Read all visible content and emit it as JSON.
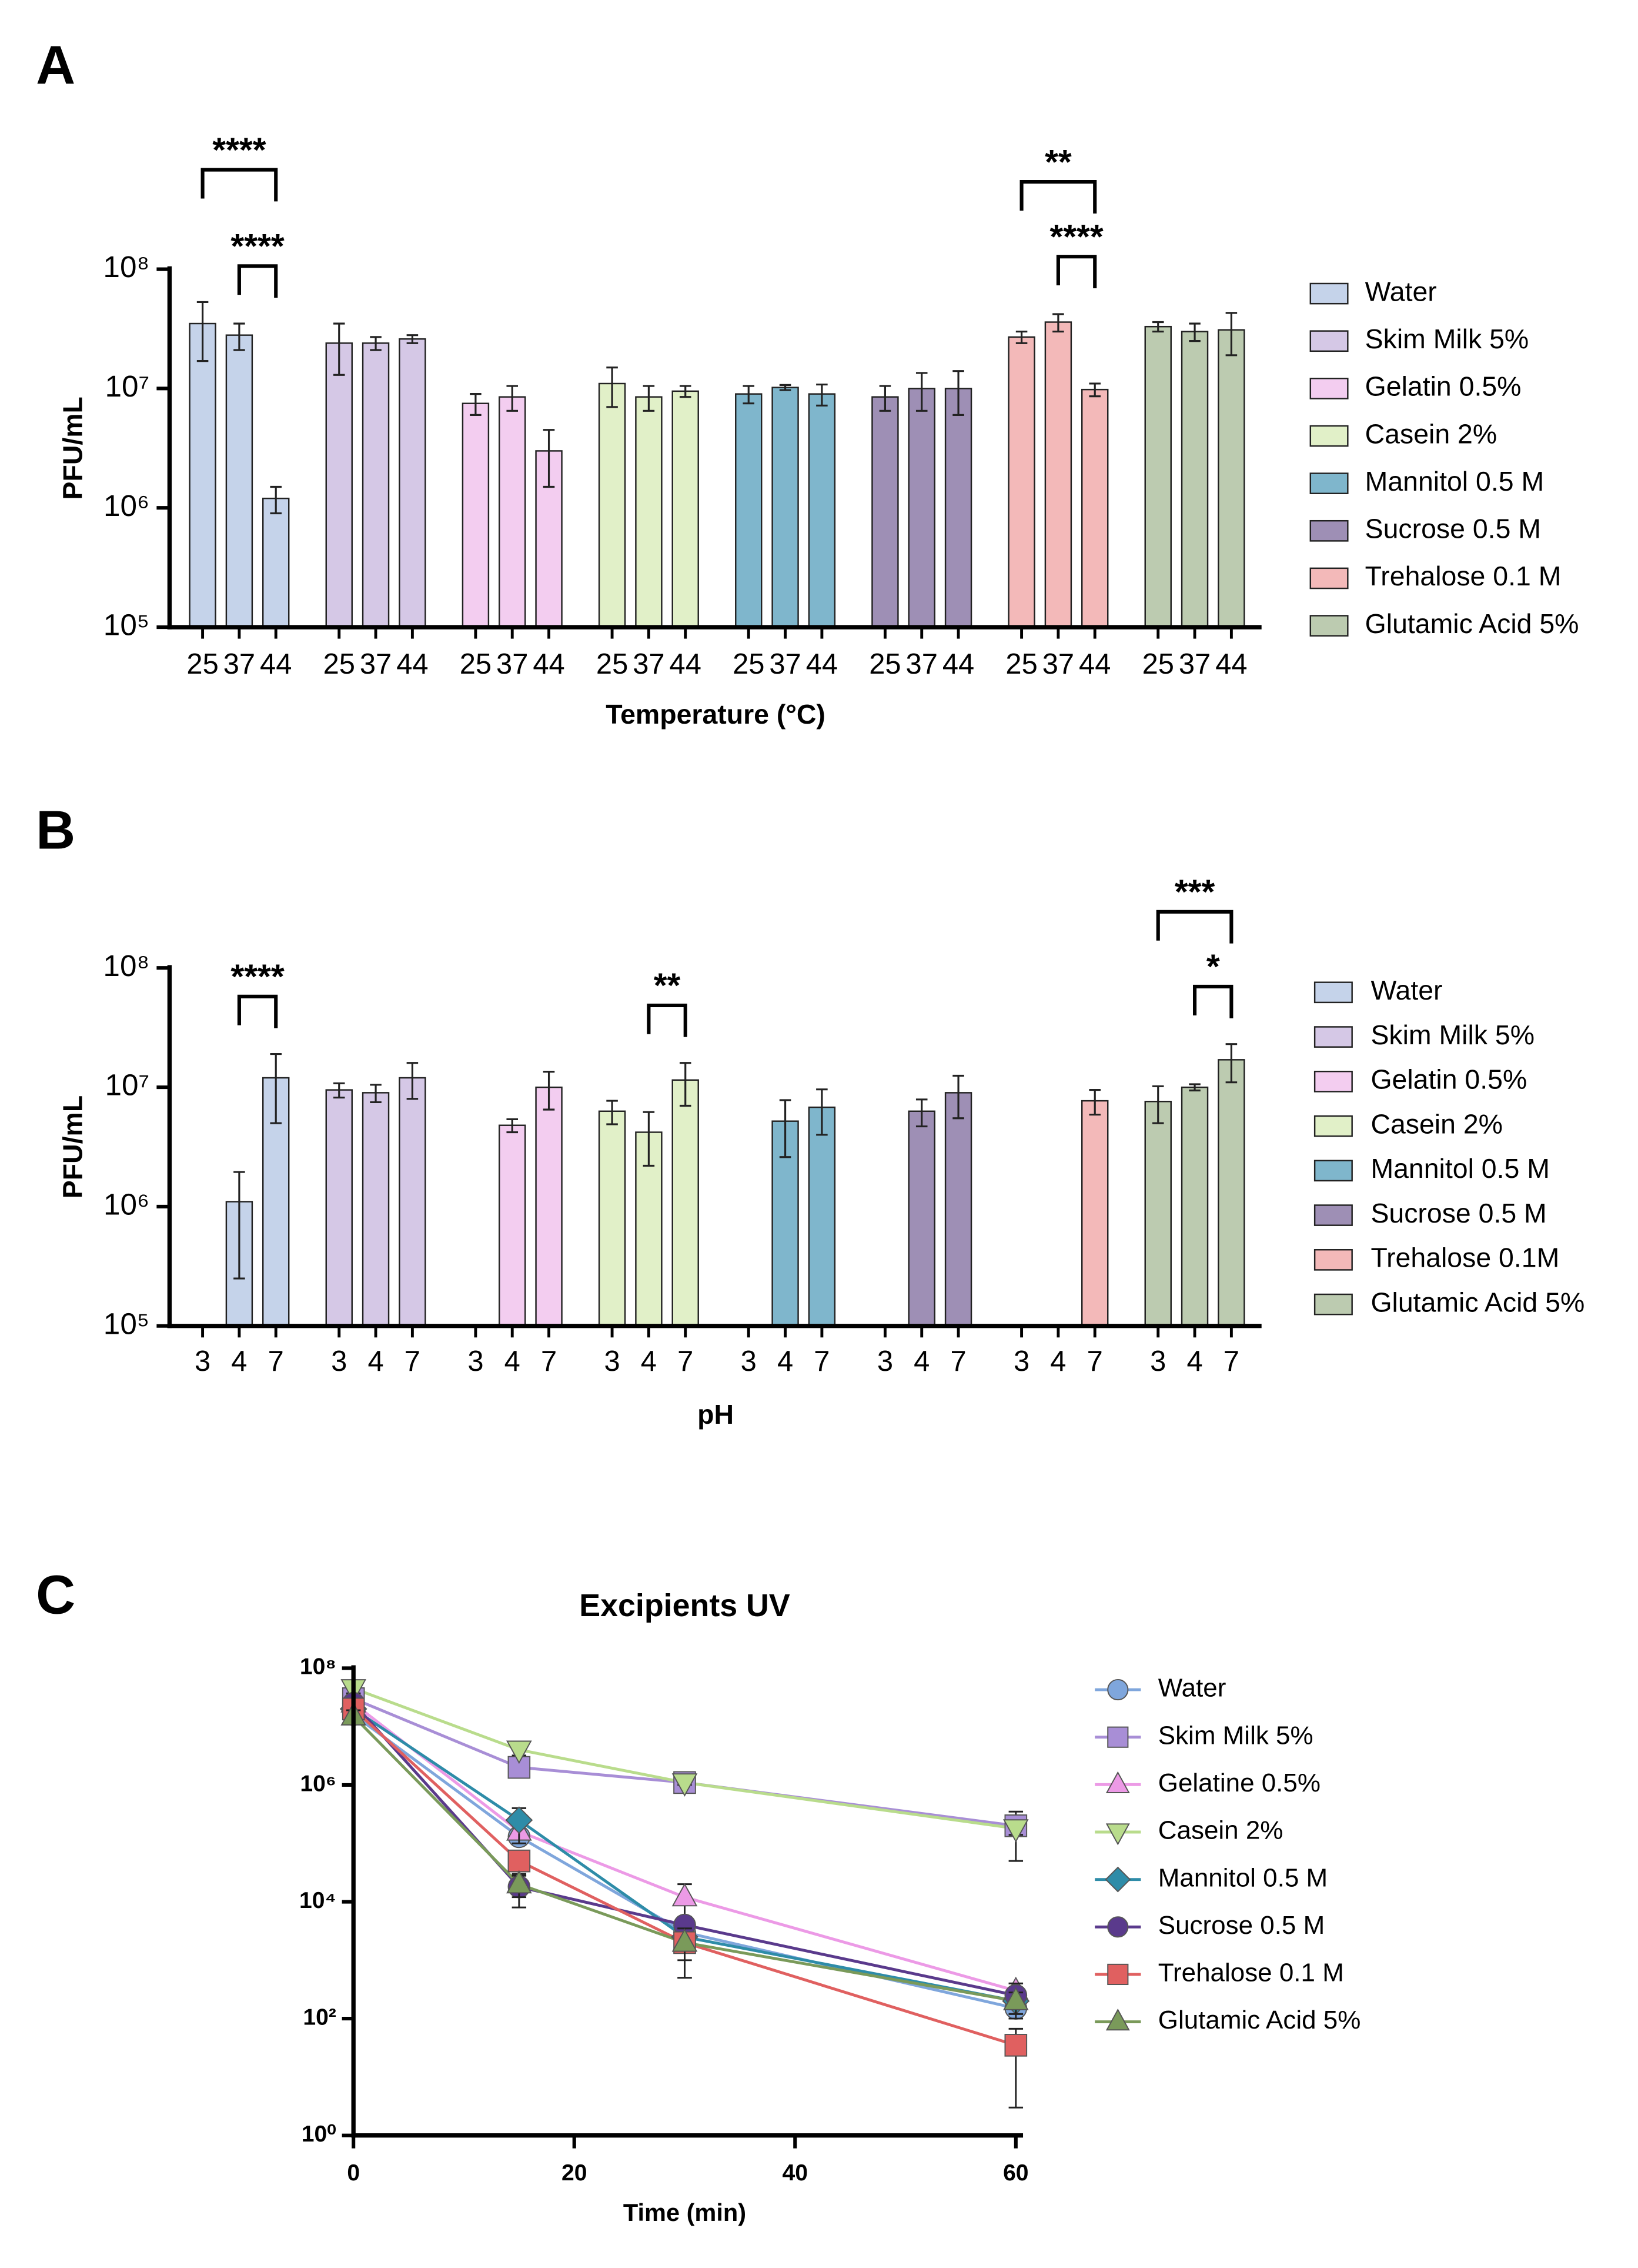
{
  "chart_data": [
    {
      "panel": "A",
      "type": "bar",
      "x_label": "Temperature (°C)",
      "y_label": "PFU/mL",
      "log_y": true,
      "legend": "right",
      "categories": [
        25,
        37,
        44
      ],
      "ylim": [
        100000,
        100000000
      ],
      "yticks": [
        {
          "value": 100000,
          "label": "10⁵"
        },
        {
          "value": 1000000,
          "label": "10⁶"
        },
        {
          "value": 10000000,
          "label": "10⁷"
        },
        {
          "value": 100000000,
          "label": "10⁸"
        }
      ],
      "series": [
        {
          "name": "Water",
          "color": "#c5d3ea",
          "values": [
            35000000,
            28000000,
            1200000
          ],
          "errors": [
            18000000,
            7000000,
            300000
          ]
        },
        {
          "name": "Skim Milk 5%",
          "color": "#d5c8e6",
          "values": [
            24000000,
            24000000,
            26000000
          ],
          "errors": [
            11000000,
            3000000,
            2000000
          ]
        },
        {
          "name": "Gelatin 0.5%",
          "color": "#f3cdf0",
          "values": [
            7500000,
            8500000,
            3000000
          ],
          "errors": [
            1500000,
            2000000,
            1500000
          ]
        },
        {
          "name": "Casein 2%",
          "color": "#e1f0c8",
          "values": [
            11000000,
            8500000,
            9500000
          ],
          "errors": [
            4000000,
            2000000,
            1000000
          ]
        },
        {
          "name": "Mannitol 0.5 M",
          "color": "#7fb6cc",
          "values": [
            9000000,
            10200000,
            9000000
          ],
          "errors": [
            1500000,
            500000,
            1800000
          ]
        },
        {
          "name": "Sucrose 0.5 M",
          "color": "#9e8fb5",
          "values": [
            8500000,
            10000000,
            10000000
          ],
          "errors": [
            2000000,
            3500000,
            4000000
          ]
        },
        {
          "name": "Trehalose 0.1 M",
          "color": "#f3b9b9",
          "values": [
            27000000,
            36000000,
            9800000
          ],
          "errors": [
            3000000,
            6000000,
            1200000
          ]
        },
        {
          "name": "Glutamic Acid 5%",
          "color": "#bccbb0",
          "values": [
            33000000,
            30000000,
            31000000
          ],
          "errors": [
            3000000,
            5000000,
            12000000
          ]
        }
      ],
      "annotations": [
        {
          "text": "****",
          "series": "Water",
          "from": 25,
          "to": 44
        },
        {
          "text": "****",
          "series": "Water",
          "from": 37,
          "to": 44
        },
        {
          "text": "**",
          "series": "Trehalose 0.1 M",
          "from": 25,
          "to": 44
        },
        {
          "text": "****",
          "series": "Trehalose 0.1 M",
          "from": 37,
          "to": 44
        }
      ]
    },
    {
      "panel": "B",
      "type": "bar",
      "x_label": "pH",
      "y_label": "PFU/mL",
      "log_y": true,
      "legend": "right",
      "categories": [
        3,
        4,
        7
      ],
      "ylim": [
        100000,
        100000000
      ],
      "yticks": [
        {
          "value": 100000,
          "label": "10⁵"
        },
        {
          "value": 1000000,
          "label": "10⁶"
        },
        {
          "value": 10000000,
          "label": "10⁷"
        },
        {
          "value": 100000000,
          "label": "10⁸"
        }
      ],
      "series": [
        {
          "name": "Water",
          "color": "#c5d3ea",
          "values": [
            null,
            1100000,
            12000000
          ],
          "errors": [
            null,
            850000,
            7000000
          ]
        },
        {
          "name": "Skim Milk 5%",
          "color": "#d5c8e6",
          "values": [
            9500000,
            9000000,
            12000000
          ],
          "errors": [
            1300000,
            1500000,
            4000000
          ]
        },
        {
          "name": "Gelatin 0.5%",
          "color": "#f3cdf0",
          "values": [
            null,
            4800000,
            10000000
          ],
          "errors": [
            null,
            600000,
            3500000
          ]
        },
        {
          "name": "Casein 2%",
          "color": "#e1f0c8",
          "values": [
            6300000,
            4200000,
            11500000
          ],
          "errors": [
            1400000,
            2000000,
            4500000
          ]
        },
        {
          "name": "Mannitol 0.5 M",
          "color": "#7fb6cc",
          "values": [
            null,
            5200000,
            6800000
          ],
          "errors": [
            null,
            2600000,
            2800000
          ]
        },
        {
          "name": "Sucrose 0.5 M",
          "color": "#9e8fb5",
          "values": [
            null,
            6300000,
            9000000
          ],
          "errors": [
            null,
            1600000,
            3500000
          ]
        },
        {
          "name": "Trehalose 0.1M",
          "color": "#f3b9b9",
          "values": [
            null,
            null,
            7700000
          ],
          "errors": [
            null,
            null,
            1800000
          ]
        },
        {
          "name": "Glutamic Acid 5%",
          "color": "#bccbb0",
          "values": [
            7600000,
            10000000,
            17000000
          ],
          "errors": [
            2600000,
            600000,
            6000000
          ]
        }
      ],
      "annotations": [
        {
          "text": "****",
          "series": "Water",
          "from": 4,
          "to": 7
        },
        {
          "text": "**",
          "series": "Casein 2%",
          "from": 4,
          "to": 7
        },
        {
          "text": "***",
          "series": "Glutamic Acid 5%",
          "from": 3,
          "to": 7
        },
        {
          "text": "*",
          "series": "Glutamic Acid 5%",
          "from": 4,
          "to": 7
        }
      ]
    },
    {
      "panel": "C",
      "type": "line",
      "title": "Excipients UV",
      "x_label": "Time (min)",
      "log_y": true,
      "legend": "right",
      "x": [
        0,
        15,
        30,
        60
      ],
      "xlim": [
        0,
        60
      ],
      "xticks": [
        0,
        20,
        40,
        60
      ],
      "ylim": [
        1,
        100000000
      ],
      "yticks": [
        {
          "value": 1,
          "label": "10⁰"
        },
        {
          "value": 100,
          "label": "10²"
        },
        {
          "value": 10000,
          "label": "10⁴"
        },
        {
          "value": 1000000,
          "label": "10⁶"
        },
        {
          "value": 100000000,
          "label": "10⁸"
        }
      ],
      "series": [
        {
          "name": "Water",
          "color": "#7fa6dc",
          "marker": "circle",
          "values": [
            16000000,
            130000,
            3000,
            150
          ],
          "errors": [
            3000000,
            30000,
            1000,
            50
          ]
        },
        {
          "name": "Skim Milk 5%",
          "color": "#a88ed6",
          "marker": "square",
          "values": [
            30000000,
            2000000,
            1100000,
            200000
          ],
          "errors": [
            8000000,
            500000,
            100000,
            150000
          ]
        },
        {
          "name": "Gelatine 0.5%",
          "color": "#ec9ae6",
          "marker": "triangle-up",
          "values": [
            25000000,
            160000,
            12000,
            300
          ],
          "errors": [
            5000000,
            40000,
            8000,
            100
          ]
        },
        {
          "name": "Casein 2%",
          "color": "#b9dc8c",
          "marker": "triangle-down",
          "values": [
            45000000,
            4000000,
            1100000,
            180000
          ],
          "errors": [
            8000000,
            800000,
            100000,
            40000
          ]
        },
        {
          "name": "Mannitol 0.5 M",
          "color": "#2e8ca8",
          "marker": "diamond",
          "values": [
            20000000,
            250000,
            2500,
            200
          ],
          "errors": [
            5000000,
            150000,
            1500,
            80
          ]
        },
        {
          "name": "Sucrose 0.5 M",
          "color": "#5a3a8c",
          "marker": "circle",
          "values": [
            25000000,
            18000,
            4000,
            250
          ],
          "errors": [
            6000000,
            10000,
            1500,
            150
          ]
        },
        {
          "name": "Trehalose 0.1 M",
          "color": "#e06060",
          "marker": "square",
          "values": [
            20000000,
            50000,
            2000,
            35
          ],
          "errors": [
            5000000,
            20000,
            1500,
            32
          ]
        },
        {
          "name": "Glutamic Acid 5%",
          "color": "#7a9a5a",
          "marker": "triangle-up",
          "values": [
            15000000,
            20000,
            2000,
            200
          ],
          "errors": [
            4000000,
            8000,
            1500,
            80
          ]
        }
      ]
    }
  ]
}
